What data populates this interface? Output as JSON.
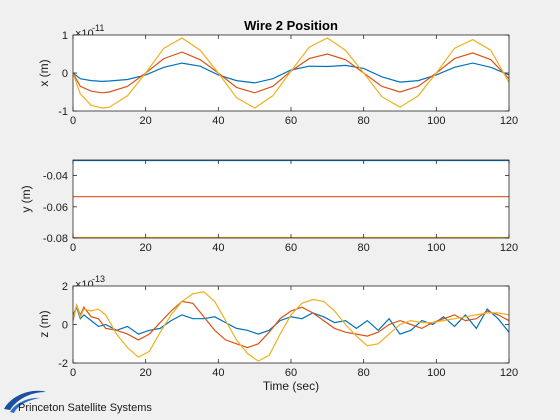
{
  "title": "Wire 2 Position",
  "xlabel": "Time (sec)",
  "logo": {
    "text": "Princeton Satellite Systems"
  },
  "colors": {
    "series1": "#0072BD",
    "series2": "#D95319",
    "series3": "#EDB120",
    "axes": "#262626"
  },
  "chart_data": [
    {
      "type": "line",
      "ylabel": "x (m)",
      "exponent": {
        "base": "×10",
        "power": "-11"
      },
      "xlim": [
        0,
        120
      ],
      "ylim": [
        -1,
        1
      ],
      "xticks": [
        0,
        20,
        40,
        60,
        80,
        100,
        120
      ],
      "yticks": [
        -1,
        0,
        1
      ],
      "ytick_labels": [
        "-1",
        "0",
        "1"
      ],
      "series": [
        {
          "x": [
            0,
            2,
            5,
            8,
            10,
            15,
            20,
            25,
            30,
            35,
            40,
            45,
            50,
            55,
            60,
            65,
            70,
            75,
            80,
            85,
            90,
            95,
            100,
            105,
            110,
            115,
            120
          ],
          "y": [
            0,
            -0.15,
            -0.2,
            -0.22,
            -0.21,
            -0.17,
            -0.05,
            0.15,
            0.26,
            0.18,
            -0.05,
            -0.2,
            -0.26,
            -0.15,
            0.08,
            0.18,
            0.17,
            0.2,
            0.12,
            -0.1,
            -0.24,
            -0.2,
            -0.05,
            0.15,
            0.26,
            0.15,
            -0.05
          ]
        },
        {
          "x": [
            0,
            2,
            5,
            8,
            10,
            15,
            20,
            25,
            30,
            35,
            40,
            45,
            50,
            55,
            60,
            65,
            70,
            75,
            80,
            85,
            90,
            95,
            100,
            105,
            110,
            115,
            120
          ],
          "y": [
            0,
            -0.35,
            -0.48,
            -0.52,
            -0.5,
            -0.35,
            0,
            0.38,
            0.55,
            0.35,
            0,
            -0.38,
            -0.52,
            -0.35,
            0.05,
            0.38,
            0.5,
            0.35,
            0,
            -0.35,
            -0.5,
            -0.35,
            0,
            0.38,
            0.53,
            0.35,
            -0.15
          ]
        },
        {
          "x": [
            0,
            2,
            5,
            8,
            10,
            15,
            20,
            25,
            30,
            35,
            40,
            45,
            50,
            55,
            60,
            65,
            70,
            75,
            80,
            85,
            90,
            95,
            100,
            105,
            110,
            115,
            120
          ],
          "y": [
            0,
            -0.55,
            -0.85,
            -0.92,
            -0.9,
            -0.6,
            0,
            0.65,
            0.92,
            0.6,
            0,
            -0.65,
            -0.92,
            -0.6,
            0.05,
            0.68,
            0.92,
            0.6,
            0,
            -0.62,
            -0.9,
            -0.6,
            0,
            0.65,
            0.88,
            0.6,
            -0.25
          ]
        }
      ]
    },
    {
      "type": "line",
      "ylabel": "y (m)",
      "xlim": [
        0,
        120
      ],
      "ylim": [
        -0.08,
        -0.03
      ],
      "xticks": [
        0,
        20,
        40,
        60,
        80,
        100,
        120
      ],
      "yticks": [
        -0.08,
        -0.06,
        -0.04
      ],
      "ytick_labels": [
        "-0.08",
        "-0.06",
        "-0.04"
      ],
      "series": [
        {
          "x": [
            0,
            120
          ],
          "y": [
            -0.0303,
            -0.0303
          ]
        },
        {
          "x": [
            0,
            120
          ],
          "y": [
            -0.0535,
            -0.0535
          ]
        },
        {
          "x": [
            0,
            120
          ],
          "y": [
            -0.0797,
            -0.0797
          ]
        }
      ]
    },
    {
      "type": "line",
      "ylabel": "z (m)",
      "exponent": {
        "base": "×10",
        "power": "-13"
      },
      "xlim": [
        0,
        120
      ],
      "ylim": [
        -2,
        2
      ],
      "xticks": [
        0,
        20,
        40,
        60,
        80,
        100,
        120
      ],
      "yticks": [
        -2,
        0,
        2
      ],
      "ytick_labels": [
        "-2",
        "0",
        "2"
      ],
      "series": [
        {
          "x": [
            0,
            1,
            2,
            3,
            5,
            7,
            9,
            12,
            15,
            18,
            21,
            24,
            27,
            30,
            33,
            36,
            39,
            42,
            45,
            48,
            51,
            54,
            57,
            60,
            63,
            66,
            69,
            72,
            75,
            78,
            81,
            84,
            87,
            90,
            93,
            96,
            99,
            102,
            105,
            108,
            111,
            114,
            117,
            120
          ],
          "y": [
            0.5,
            0.9,
            0.3,
            0.5,
            0.2,
            -0.1,
            0.0,
            -0.3,
            -0.1,
            -0.5,
            -0.3,
            -0.2,
            0.2,
            0.5,
            0.3,
            0.3,
            0.4,
            0.1,
            -0.2,
            -0.3,
            -0.5,
            -0.3,
            0.2,
            0.4,
            0.3,
            0.6,
            0.4,
            0.1,
            0.2,
            -0.2,
            0.2,
            -0.3,
            0.3,
            -0.5,
            -0.3,
            0.2,
            0.0,
            0.4,
            -0.1,
            0.5,
            -0.2,
            0.8,
            0.3,
            -0.4
          ]
        },
        {
          "x": [
            0,
            1,
            2,
            3,
            5,
            7,
            9,
            12,
            15,
            18,
            21,
            24,
            27,
            30,
            33,
            36,
            39,
            42,
            45,
            48,
            51,
            54,
            57,
            60,
            63,
            66,
            69,
            72,
            75,
            78,
            81,
            84,
            87,
            90,
            93,
            96,
            99,
            102,
            105,
            108,
            111,
            114,
            117,
            120
          ],
          "y": [
            0.2,
            1.0,
            0.5,
            0.9,
            0.4,
            0.3,
            -0.2,
            -0.3,
            -0.5,
            -0.8,
            -0.5,
            0.1,
            0.7,
            1.2,
            1.1,
            0.4,
            -0.3,
            -0.8,
            -1.0,
            -1.2,
            -1.0,
            -0.4,
            0.3,
            0.7,
            0.9,
            0.6,
            0.2,
            -0.2,
            -0.4,
            -0.5,
            -0.6,
            -0.4,
            0.0,
            0.2,
            0.0,
            -0.2,
            0.1,
            0.3,
            0.5,
            0.2,
            0.3,
            0.7,
            0.5,
            0.2
          ]
        },
        {
          "x": [
            0,
            1,
            2,
            3,
            5,
            7,
            9,
            12,
            15,
            18,
            21,
            24,
            27,
            30,
            33,
            36,
            39,
            42,
            45,
            48,
            51,
            54,
            57,
            60,
            63,
            66,
            69,
            72,
            75,
            78,
            81,
            84,
            87,
            90,
            93,
            96,
            99,
            102,
            105,
            108,
            111,
            114,
            117,
            120
          ],
          "y": [
            0.3,
            1.0,
            0.4,
            0.8,
            0.7,
            0.8,
            0.5,
            -0.5,
            -1.2,
            -1.7,
            -1.4,
            -0.4,
            0.5,
            1.2,
            1.6,
            1.7,
            1.2,
            0.2,
            -0.8,
            -1.5,
            -1.9,
            -1.6,
            -0.5,
            0.5,
            1.1,
            1.3,
            1.2,
            0.7,
            0.0,
            -0.6,
            -1.1,
            -1.0,
            -0.5,
            0.0,
            0.2,
            0.1,
            0.1,
            0.2,
            0.3,
            0.4,
            0.5,
            0.6,
            0.6,
            0.5
          ]
        }
      ]
    }
  ]
}
